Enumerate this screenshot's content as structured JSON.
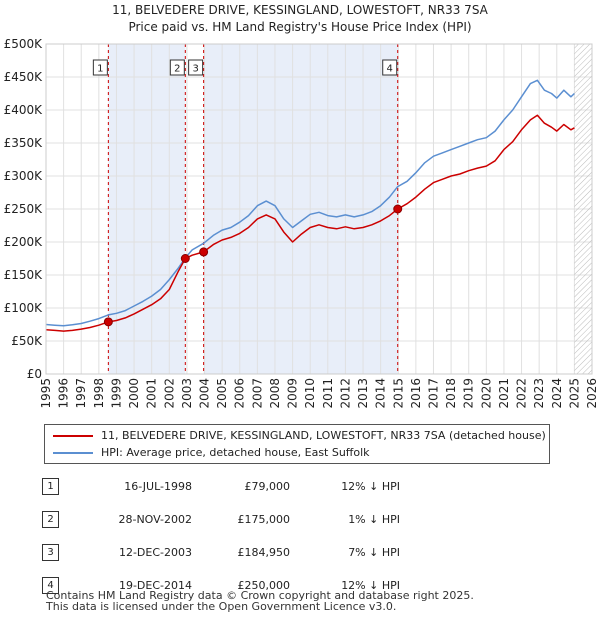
{
  "chart_data": {
    "type": "line",
    "title": "11, BELVEDERE DRIVE, KESSINGLAND, LOWESTOFT, NR33 7SA",
    "subtitle": "Price paid vs. HM Land Registry's House Price Index (HPI)",
    "xlim": [
      1995,
      2026
    ],
    "ylim": [
      0,
      500000
    ],
    "x_ticks": [
      "1995",
      "1996",
      "1997",
      "1998",
      "1999",
      "2000",
      "2001",
      "2002",
      "2003",
      "2004",
      "2005",
      "2006",
      "2007",
      "2008",
      "2009",
      "2010",
      "2011",
      "2012",
      "2013",
      "2014",
      "2015",
      "2016",
      "2017",
      "2018",
      "2019",
      "2020",
      "2021",
      "2022",
      "2023",
      "2024",
      "2025",
      "2026"
    ],
    "y_ticks": [
      {
        "v": 0,
        "label": "£0"
      },
      {
        "v": 50000,
        "label": "£50K"
      },
      {
        "v": 100000,
        "label": "£100K"
      },
      {
        "v": 150000,
        "label": "£150K"
      },
      {
        "v": 200000,
        "label": "£200K"
      },
      {
        "v": 250000,
        "label": "£250K"
      },
      {
        "v": 300000,
        "label": "£300K"
      },
      {
        "v": 350000,
        "label": "£350K"
      },
      {
        "v": 400000,
        "label": "£400K"
      },
      {
        "v": 450000,
        "label": "£450K"
      },
      {
        "v": 500000,
        "label": "£500K"
      }
    ],
    "shaded_periods": [
      [
        1998.54,
        2002.91
      ],
      [
        2003.95,
        2014.97
      ]
    ],
    "future_hatch_from": 2025.0,
    "series": [
      {
        "name": "HPI: Average price, detached house, East Suffolk",
        "color": "#5b8fd1",
        "points": [
          [
            1995.0,
            75000
          ],
          [
            1995.5,
            74000
          ],
          [
            1996.0,
            73000
          ],
          [
            1996.5,
            74500
          ],
          [
            1997.0,
            76500
          ],
          [
            1997.5,
            80000
          ],
          [
            1998.0,
            84000
          ],
          [
            1998.54,
            89500
          ],
          [
            1999.0,
            92000
          ],
          [
            1999.5,
            96000
          ],
          [
            2000.0,
            103000
          ],
          [
            2000.5,
            110000
          ],
          [
            2001.0,
            118000
          ],
          [
            2001.5,
            128000
          ],
          [
            2002.0,
            143000
          ],
          [
            2002.5,
            160000
          ],
          [
            2002.91,
            176000
          ],
          [
            2003.3,
            188000
          ],
          [
            2003.95,
            198000
          ],
          [
            2004.5,
            210000
          ],
          [
            2005.0,
            218000
          ],
          [
            2005.5,
            222000
          ],
          [
            2006.0,
            230000
          ],
          [
            2006.5,
            240000
          ],
          [
            2007.0,
            255000
          ],
          [
            2007.5,
            262000
          ],
          [
            2008.0,
            255000
          ],
          [
            2008.5,
            235000
          ],
          [
            2009.0,
            222000
          ],
          [
            2009.5,
            232000
          ],
          [
            2010.0,
            242000
          ],
          [
            2010.5,
            245000
          ],
          [
            2011.0,
            240000
          ],
          [
            2011.5,
            238000
          ],
          [
            2012.0,
            241000
          ],
          [
            2012.5,
            238000
          ],
          [
            2013.0,
            241000
          ],
          [
            2013.5,
            246000
          ],
          [
            2014.0,
            255000
          ],
          [
            2014.5,
            268000
          ],
          [
            2014.97,
            284000
          ],
          [
            2015.5,
            292000
          ],
          [
            2016.0,
            305000
          ],
          [
            2016.5,
            320000
          ],
          [
            2017.0,
            330000
          ],
          [
            2017.5,
            335000
          ],
          [
            2018.0,
            340000
          ],
          [
            2018.5,
            345000
          ],
          [
            2019.0,
            350000
          ],
          [
            2019.5,
            355000
          ],
          [
            2020.0,
            358000
          ],
          [
            2020.5,
            368000
          ],
          [
            2021.0,
            385000
          ],
          [
            2021.5,
            400000
          ],
          [
            2022.0,
            420000
          ],
          [
            2022.5,
            440000
          ],
          [
            2022.9,
            445000
          ],
          [
            2023.3,
            430000
          ],
          [
            2023.7,
            425000
          ],
          [
            2024.0,
            418000
          ],
          [
            2024.4,
            430000
          ],
          [
            2024.8,
            420000
          ],
          [
            2025.0,
            425000
          ]
        ]
      },
      {
        "name": "11, BELVEDERE DRIVE, KESSINGLAND, LOWESTOFT, NR33 7SA (detached house)",
        "color": "#cc0000",
        "points": [
          [
            1995.0,
            67000
          ],
          [
            1995.5,
            66000
          ],
          [
            1996.0,
            65000
          ],
          [
            1996.5,
            66000
          ],
          [
            1997.0,
            68000
          ],
          [
            1997.5,
            70500
          ],
          [
            1998.0,
            74000
          ],
          [
            1998.54,
            79000
          ],
          [
            1999.0,
            81000
          ],
          [
            1999.5,
            85000
          ],
          [
            2000.0,
            91000
          ],
          [
            2000.5,
            98000
          ],
          [
            2001.0,
            105000
          ],
          [
            2001.5,
            114000
          ],
          [
            2002.0,
            128000
          ],
          [
            2002.5,
            155000
          ],
          [
            2002.91,
            175000
          ],
          [
            2003.3,
            180000
          ],
          [
            2003.95,
            184950
          ],
          [
            2004.5,
            196000
          ],
          [
            2005.0,
            203000
          ],
          [
            2005.5,
            207000
          ],
          [
            2006.0,
            213000
          ],
          [
            2006.5,
            222000
          ],
          [
            2007.0,
            235000
          ],
          [
            2007.5,
            241000
          ],
          [
            2008.0,
            235000
          ],
          [
            2008.5,
            215000
          ],
          [
            2009.0,
            200000
          ],
          [
            2009.5,
            212000
          ],
          [
            2010.0,
            222000
          ],
          [
            2010.5,
            226000
          ],
          [
            2011.0,
            222000
          ],
          [
            2011.5,
            220000
          ],
          [
            2012.0,
            223000
          ],
          [
            2012.5,
            220000
          ],
          [
            2013.0,
            222000
          ],
          [
            2013.5,
            226000
          ],
          [
            2014.0,
            232000
          ],
          [
            2014.5,
            240000
          ],
          [
            2014.97,
            250000
          ],
          [
            2015.5,
            258000
          ],
          [
            2016.0,
            268000
          ],
          [
            2016.5,
            280000
          ],
          [
            2017.0,
            290000
          ],
          [
            2017.5,
            295000
          ],
          [
            2018.0,
            300000
          ],
          [
            2018.5,
            303000
          ],
          [
            2019.0,
            308000
          ],
          [
            2019.5,
            312000
          ],
          [
            2020.0,
            315000
          ],
          [
            2020.5,
            323000
          ],
          [
            2021.0,
            340000
          ],
          [
            2021.5,
            352000
          ],
          [
            2022.0,
            370000
          ],
          [
            2022.5,
            385000
          ],
          [
            2022.9,
            392000
          ],
          [
            2023.3,
            380000
          ],
          [
            2023.7,
            374000
          ],
          [
            2024.0,
            368000
          ],
          [
            2024.4,
            378000
          ],
          [
            2024.8,
            370000
          ],
          [
            2025.0,
            373000
          ]
        ]
      }
    ],
    "sales": [
      {
        "id": "1",
        "x": 1998.54,
        "price": 79000
      },
      {
        "id": "2",
        "x": 2002.91,
        "price": 175000
      },
      {
        "id": "3",
        "x": 2003.95,
        "price": 184950
      },
      {
        "id": "4",
        "x": 2014.97,
        "price": 250000
      }
    ]
  },
  "legend": {
    "property_label": "11, BELVEDERE DRIVE, KESSINGLAND, LOWESTOFT, NR33 7SA (detached house)",
    "hpi_label": "HPI: Average price, detached house, East Suffolk",
    "property_color": "#cc0000",
    "hpi_color": "#5b8fd1"
  },
  "table": [
    {
      "num": "1",
      "date": "16-JUL-1998",
      "price": "£79,000",
      "hpi": "12% ↓ HPI"
    },
    {
      "num": "2",
      "date": "28-NOV-2002",
      "price": "£175,000",
      "hpi": "1% ↓ HPI"
    },
    {
      "num": "3",
      "date": "12-DEC-2003",
      "price": "£184,950",
      "hpi": "7% ↓ HPI"
    },
    {
      "num": "4",
      "date": "19-DEC-2014",
      "price": "£250,000",
      "hpi": "12% ↓ HPI"
    }
  ],
  "footer": {
    "line1": "Contains HM Land Registry data © Crown copyright and database right 2025.",
    "line2": "This data is licensed under the Open Government Licence v3.0."
  }
}
